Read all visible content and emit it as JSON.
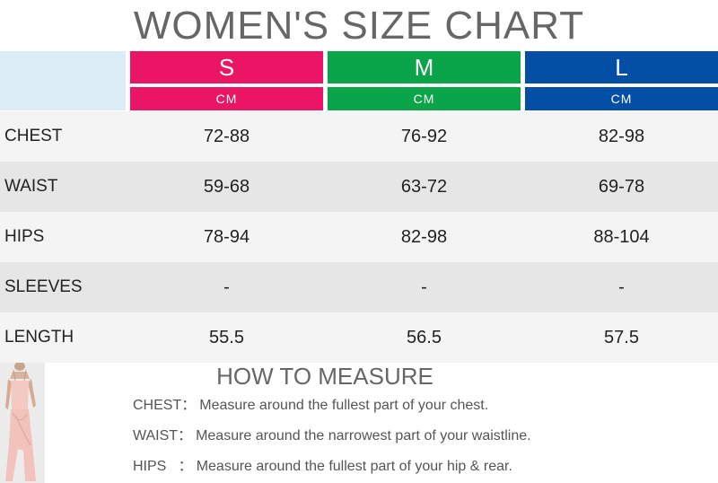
{
  "title": "WOMEN'S SIZE CHART",
  "sizes": [
    {
      "name": "S",
      "unit": "CM",
      "color": "#ea1564"
    },
    {
      "name": "M",
      "unit": "CM",
      "color": "#0aa449"
    },
    {
      "name": "L",
      "unit": "CM",
      "color": "#034fa6"
    }
  ],
  "rows": [
    {
      "label": "CHEST",
      "values": [
        "72-88",
        "76-92",
        "82-98"
      ]
    },
    {
      "label": "WAIST",
      "values": [
        "59-68",
        "63-72",
        "69-78"
      ]
    },
    {
      "label": "HIPS",
      "values": [
        "78-94",
        "82-98",
        "88-104"
      ]
    },
    {
      "label": "SLEEVES",
      "values": [
        "-",
        "-",
        "-"
      ]
    },
    {
      "label": "LENGTH",
      "values": [
        "55.5",
        "56.5",
        "57.5"
      ]
    }
  ],
  "how_to_measure": {
    "title": "HOW TO MEASURE",
    "items": [
      {
        "key": "CHEST：",
        "text": "Measure around the fullest part of your chest."
      },
      {
        "key": "WAIST：",
        "text": "Measure around the narrowest part of your waistline."
      },
      {
        "key": "HIPS   ：",
        "text": "Measure around the fullest part of your hip & rear."
      }
    ]
  },
  "figure": {
    "icon": "model-dress-figure",
    "dress_color": "#f3c9c2"
  }
}
